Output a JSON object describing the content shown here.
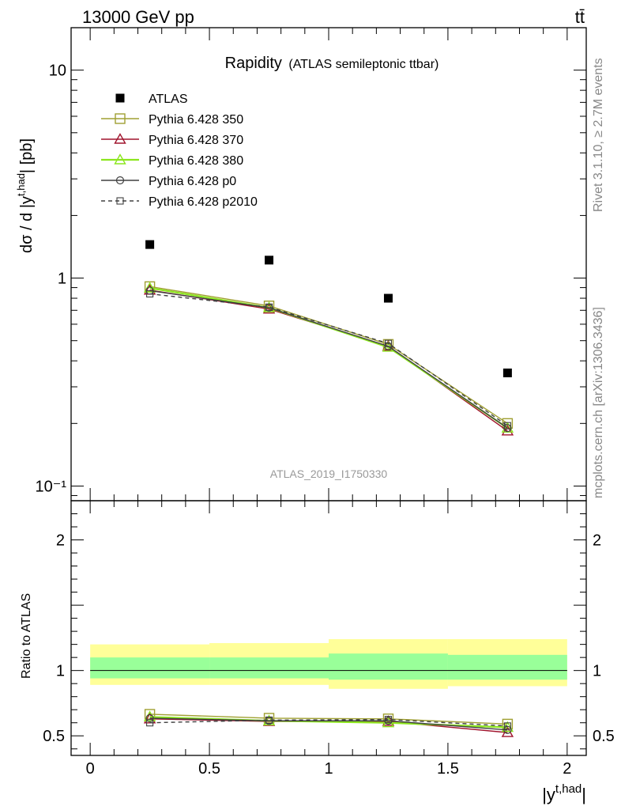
{
  "header": {
    "left": "13000 GeV pp",
    "right": "tt̄"
  },
  "side_labels": {
    "rivet": "Rivet 3.1.10, ≥ 2.7M events",
    "mcplots": "mcplots.cern.ch [arXiv:1306.3436]"
  },
  "chart_data": [
    {
      "type": "scatter",
      "title": "Rapidity",
      "subtitle": "(ATLAS semileptonic ttbar)",
      "watermark": "ATLAS_2019_I1750330",
      "ylabel": "dσ / d |y^{t,had}| [pb]",
      "yscale": "log",
      "ylim": [
        0.085,
        16
      ],
      "xlim": [
        -0.08,
        2.08
      ],
      "yticks": [
        {
          "value": 10,
          "label": "10"
        },
        {
          "value": 1,
          "label": "1"
        },
        {
          "value": 0.1,
          "label": "10⁻¹"
        }
      ],
      "legend_position": "top-left",
      "x": [
        0.25,
        0.75,
        1.25,
        1.75
      ],
      "series": [
        {
          "name": "ATLAS",
          "marker": "filled-square",
          "color": "#000000",
          "line": "none",
          "values": [
            1.45,
            1.22,
            0.8,
            0.35
          ]
        },
        {
          "name": "Pythia 6.428 350",
          "marker": "open-square",
          "color": "#a0a032",
          "line": "solid",
          "values": [
            0.91,
            0.735,
            0.48,
            0.2
          ]
        },
        {
          "name": "Pythia 6.428 370",
          "marker": "open-triangle",
          "color": "#a0142d",
          "line": "solid",
          "values": [
            0.875,
            0.71,
            0.47,
            0.184
          ]
        },
        {
          "name": "Pythia 6.428 380",
          "marker": "open-triangle",
          "color": "#8ce61e",
          "line": "solid",
          "values": [
            0.895,
            0.72,
            0.465,
            0.19
          ]
        },
        {
          "name": "Pythia 6.428 p0",
          "marker": "open-circle",
          "color": "#404040",
          "line": "solid",
          "values": [
            0.87,
            0.72,
            0.47,
            0.19
          ]
        },
        {
          "name": "Pythia 6.428 p2010",
          "marker": "open-square-small",
          "color": "#404040",
          "line": "dashed",
          "values": [
            0.84,
            0.725,
            0.485,
            0.195
          ]
        }
      ]
    },
    {
      "type": "scatter",
      "ylabel": "Ratio to ATLAS",
      "xlabel": "|y^{t,had}|",
      "ylim": [
        0.35,
        2.3
      ],
      "xlim": [
        -0.08,
        2.08
      ],
      "yticks": [
        {
          "value": 0.5,
          "label": "0.5"
        },
        {
          "value": 1,
          "label": "1"
        },
        {
          "value": 2,
          "label": "2"
        }
      ],
      "xticks": [
        {
          "value": 0,
          "label": "0"
        },
        {
          "value": 0.5,
          "label": "0.5"
        },
        {
          "value": 1,
          "label": "1"
        },
        {
          "value": 1.5,
          "label": "1.5"
        },
        {
          "value": 2,
          "label": "2"
        }
      ],
      "bands": [
        {
          "x0": 0,
          "x1": 0.5,
          "stat_lo": 0.94,
          "stat_hi": 1.1,
          "tot_lo": 0.89,
          "tot_hi": 1.2
        },
        {
          "x0": 0.5,
          "x1": 1.0,
          "stat_lo": 0.94,
          "stat_hi": 1.1,
          "tot_lo": 0.89,
          "tot_hi": 1.21
        },
        {
          "x0": 1.0,
          "x1": 1.5,
          "stat_lo": 0.93,
          "stat_hi": 1.13,
          "tot_lo": 0.86,
          "tot_hi": 1.24
        },
        {
          "x0": 1.5,
          "x1": 2.0,
          "stat_lo": 0.93,
          "stat_hi": 1.12,
          "tot_lo": 0.88,
          "tot_hi": 1.24
        }
      ],
      "x": [
        0.25,
        0.75,
        1.25,
        1.75
      ],
      "series": [
        {
          "name": "Pythia 6.428 350",
          "values": [
            0.665,
            0.635,
            0.63,
            0.59
          ]
        },
        {
          "name": "Pythia 6.428 370",
          "values": [
            0.63,
            0.61,
            0.61,
            0.525
          ]
        },
        {
          "name": "Pythia 6.428 380",
          "values": [
            0.645,
            0.615,
            0.6,
            0.565
          ]
        },
        {
          "name": "Pythia 6.428 p0",
          "values": [
            0.635,
            0.615,
            0.615,
            0.545
          ]
        },
        {
          "name": "Pythia 6.428 p2010",
          "values": [
            0.6,
            0.62,
            0.625,
            0.575
          ]
        }
      ]
    }
  ]
}
